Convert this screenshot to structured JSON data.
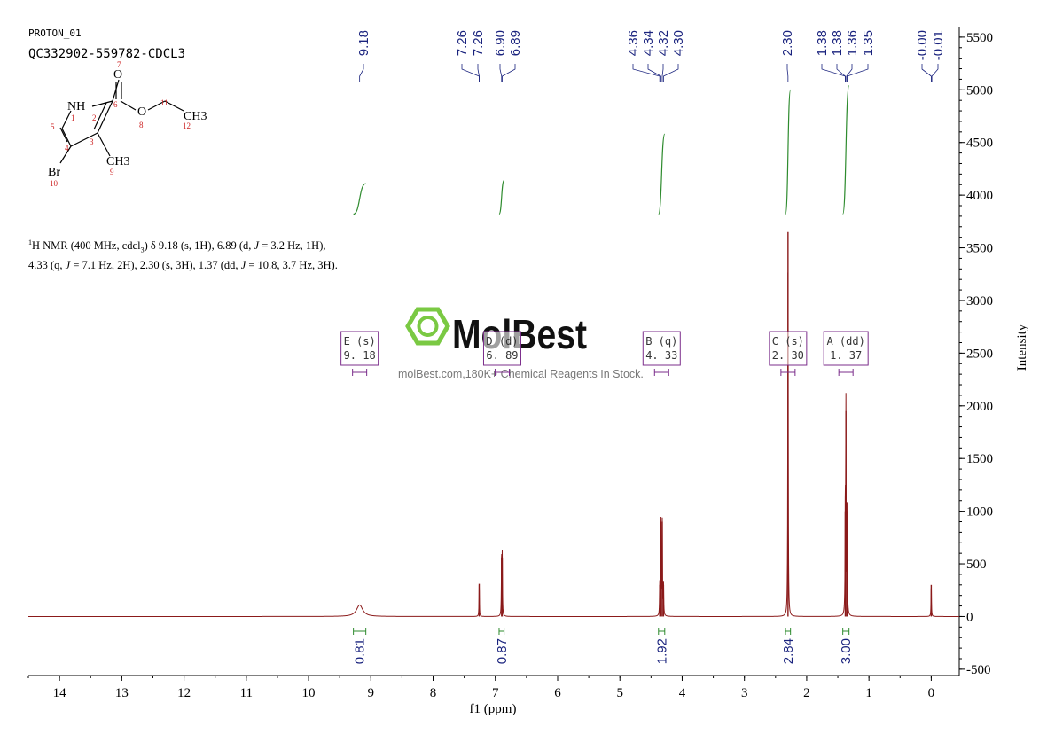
{
  "header": {
    "experiment": "PROTON_01",
    "sample": "QC332902-559782-CDCL3"
  },
  "structure": {
    "atoms": {
      "nh": "NH",
      "o_carbonyl": "O",
      "o_ester": "O",
      "ch3_ester": "CH3",
      "ch3_ring": "CH3",
      "br": "Br"
    },
    "numbers": [
      "1",
      "2",
      "3",
      "4",
      "5",
      "6",
      "7",
      "8",
      "9",
      "10",
      "11",
      "12"
    ]
  },
  "nmr_description": {
    "nucleus_sup": "1",
    "text_a": "H NMR (400 MHz, cdcl",
    "sub3": "3",
    "text_b": ") δ 9.18 (s, 1H), 6.89 (d, ",
    "j1": "J",
    "text_c": " = 3.2 Hz, 1H), 4.33 (q, ",
    "j2": "J",
    "text_d": " = 7.1 Hz, 2H), 2.30 (s, 3H), 1.37 (dd, ",
    "j3": "J",
    "text_e": " = 10.8, 3.7 Hz, 3H)."
  },
  "watermark": {
    "brand": "MolBest",
    "tagline": "molBest.com,180K+ Chemical Reagents In Stock."
  },
  "colors": {
    "spectrum": "#8b1a1a",
    "integral_curve": "#2e8b2e",
    "peak_label": "#1a237e",
    "multiplet_box": "#7b2d8b",
    "watermark": "#7ac943"
  },
  "chart_data": {
    "type": "line",
    "xlabel": "f1 (ppm)",
    "ylabel": "Intensity",
    "x_reversed": true,
    "xlim": [
      14.5,
      -0.45
    ],
    "ylim": [
      -560,
      5600
    ],
    "x_ticks": [
      14,
      13,
      12,
      11,
      10,
      9,
      8,
      7,
      6,
      5,
      4,
      3,
      2,
      1,
      0
    ],
    "y_ticks": [
      -500,
      0,
      500,
      1000,
      1500,
      2000,
      2500,
      3000,
      3500,
      4000,
      4500,
      5000,
      5500
    ],
    "peaks": [
      {
        "ppm": 9.18,
        "height": 110,
        "width": 0.06
      },
      {
        "ppm": 7.26,
        "height": 310,
        "width": 0.004
      },
      {
        "ppm": 6.9,
        "height": 560,
        "width": 0.004
      },
      {
        "ppm": 6.89,
        "height": 560,
        "width": 0.004
      },
      {
        "ppm": 4.36,
        "height": 300,
        "width": 0.004
      },
      {
        "ppm": 4.34,
        "height": 900,
        "width": 0.004
      },
      {
        "ppm": 4.32,
        "height": 900,
        "width": 0.004
      },
      {
        "ppm": 4.3,
        "height": 300,
        "width": 0.004
      },
      {
        "ppm": 2.3,
        "height": 3650,
        "width": 0.004
      },
      {
        "ppm": 1.38,
        "height": 1000,
        "width": 0.004
      },
      {
        "ppm": 1.37,
        "height": 1950,
        "width": 0.004
      },
      {
        "ppm": 1.35,
        "height": 1000,
        "width": 0.004
      },
      {
        "ppm": 0.0,
        "height": 300,
        "width": 0.004
      }
    ],
    "peak_labels": {
      "groups": [
        {
          "labels": [
            "9.18"
          ]
        },
        {
          "labels": [
            "7.26",
            "7.26",
            "6.90",
            "6.89"
          ]
        },
        {
          "labels": [
            "4.36",
            "4.34",
            "4.32",
            "4.30"
          ]
        },
        {
          "labels": [
            "2.30"
          ]
        },
        {
          "labels": [
            "1.38",
            "1.38",
            "1.36",
            "1.35"
          ]
        },
        {
          "labels": [
            "-0.00",
            "-0.01"
          ]
        }
      ]
    },
    "integrals": [
      {
        "from": 9.28,
        "to": 9.08,
        "value": "0.81",
        "rise": 290
      },
      {
        "from": 6.94,
        "to": 6.86,
        "value": "0.87",
        "rise": 320
      },
      {
        "from": 4.38,
        "to": 4.28,
        "value": "1.92",
        "rise": 760
      },
      {
        "from": 2.34,
        "to": 2.26,
        "value": "2.84",
        "rise": 1180
      },
      {
        "from": 1.42,
        "to": 1.32,
        "value": "3.00",
        "rise": 1220
      }
    ],
    "multiplets": [
      {
        "id": "E",
        "type": "(s)",
        "ppm": "9. 18",
        "center": 9.18
      },
      {
        "id": "D",
        "type": "(d)",
        "ppm": "6. 89",
        "center": 6.89
      },
      {
        "id": "B",
        "type": "(q)",
        "ppm": "4. 33",
        "center": 4.33
      },
      {
        "id": "C",
        "type": "(s)",
        "ppm": "2. 30",
        "center": 2.3
      },
      {
        "id": "A",
        "type": "(dd)",
        "ppm": "1. 37",
        "center": 1.37
      }
    ]
  }
}
